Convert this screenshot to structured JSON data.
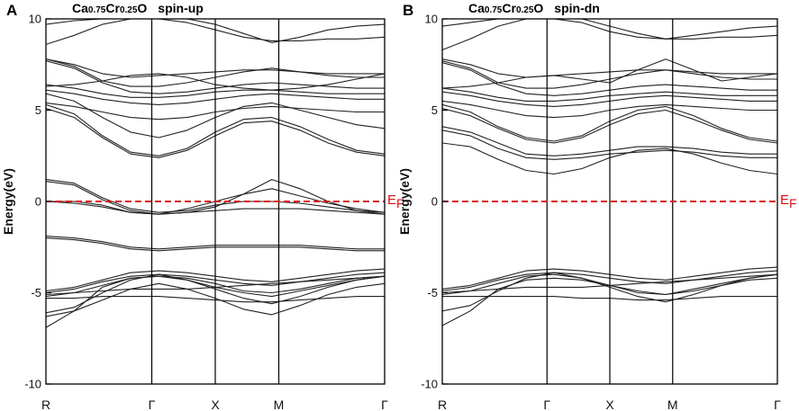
{
  "figure": {
    "colors": {
      "band": "#222222",
      "axis": "#000000",
      "fermi": "#dd1111"
    }
  },
  "chart_data": [
    {
      "type": "line",
      "panel_label": "A",
      "title_parts": [
        "Ca",
        "0.75",
        "Cr",
        "0.25",
        "O"
      ],
      "subtitle": "spin-up",
      "ylabel": "Energy(eV)",
      "xlabel": "",
      "ylim": [
        -10,
        10
      ],
      "yticks": [
        10,
        5,
        0,
        -5,
        -10
      ],
      "k_points": [
        "R",
        "Γ",
        "X",
        "M",
        "Γ"
      ],
      "k_positions": [
        0,
        1,
        1.6,
        2.2,
        3.2
      ],
      "fermi_label": "E",
      "fermi_sub": "F",
      "fermi_level": 0,
      "bands": [
        [
          -6.9,
          -6.0,
          -4.7,
          -4.2,
          -4.1,
          -4.2,
          -4.5,
          -4.9,
          -5.0,
          -4.8,
          -4.5,
          -4.2,
          -4.1
        ],
        [
          -6.1,
          -5.8,
          -5.0,
          -4.3,
          -4.0,
          -4.3,
          -4.8,
          -5.3,
          -5.6,
          -5.2,
          -4.7,
          -4.3,
          -4.1
        ],
        [
          -5.2,
          -5.0,
          -4.6,
          -4.2,
          -4.1,
          -4.3,
          -4.7,
          -5.0,
          -5.2,
          -4.9,
          -4.6,
          -4.3,
          -4.1
        ],
        [
          -5.0,
          -4.8,
          -4.4,
          -4.1,
          -4.0,
          -4.1,
          -4.3,
          -4.5,
          -4.6,
          -4.4,
          -4.2,
          -4.0,
          -3.9
        ],
        [
          -4.9,
          -4.7,
          -4.3,
          -3.9,
          -3.8,
          -3.9,
          -4.1,
          -4.3,
          -4.4,
          -4.2,
          -4.0,
          -3.8,
          -3.7
        ],
        [
          -5.3,
          -5.3,
          -5.2,
          -5.2,
          -5.2,
          -5.3,
          -5.4,
          -5.5,
          -5.5,
          -5.4,
          -5.3,
          -5.2,
          -5.2
        ],
        [
          -6.3,
          -6.0,
          -5.4,
          -4.8,
          -4.5,
          -4.8,
          -5.3,
          -5.9,
          -6.2,
          -5.7,
          -5.1,
          -4.7,
          -4.5
        ],
        [
          -5.1,
          -5.0,
          -4.9,
          -4.8,
          -4.8,
          -4.8,
          -4.7,
          -4.6,
          -4.5,
          -4.4,
          -4.3,
          -4.2,
          -4.1
        ],
        [
          -1.9,
          -2.0,
          -2.2,
          -2.5,
          -2.6,
          -2.5,
          -2.4,
          -2.4,
          -2.4,
          -2.4,
          -2.5,
          -2.6,
          -2.6
        ],
        [
          -2.0,
          -2.1,
          -2.3,
          -2.6,
          -2.7,
          -2.6,
          -2.5,
          -2.5,
          -2.5,
          -2.5,
          -2.6,
          -2.7,
          -2.7
        ],
        [
          1.2,
          1.0,
          0.2,
          -0.4,
          -0.6,
          -0.5,
          -0.2,
          0.0,
          0.0,
          -0.1,
          -0.3,
          -0.5,
          -0.6
        ],
        [
          1.1,
          0.9,
          0.1,
          -0.5,
          -0.7,
          -0.4,
          0.0,
          0.4,
          0.7,
          0.3,
          -0.1,
          -0.4,
          -0.6
        ],
        [
          0.0,
          0.0,
          -0.2,
          -0.6,
          -0.7,
          -0.6,
          -0.3,
          0.4,
          1.2,
          0.7,
          0.0,
          -0.5,
          -0.7
        ],
        [
          0.0,
          -0.1,
          -0.3,
          -0.6,
          -0.7,
          -0.6,
          -0.5,
          -0.4,
          -0.4,
          -0.4,
          -0.5,
          -0.6,
          -0.7
        ],
        [
          5.3,
          4.8,
          3.6,
          2.7,
          2.5,
          2.9,
          3.8,
          4.5,
          4.6,
          4.1,
          3.4,
          2.8,
          2.6
        ],
        [
          5.1,
          4.6,
          3.5,
          2.6,
          2.4,
          2.8,
          3.6,
          4.3,
          4.4,
          3.9,
          3.2,
          2.7,
          2.5
        ],
        [
          5.9,
          5.5,
          4.6,
          3.8,
          3.5,
          3.9,
          4.6,
          5.2,
          5.4,
          5.0,
          4.6,
          4.2,
          4.0
        ],
        [
          5.4,
          5.2,
          4.9,
          4.6,
          4.5,
          4.6,
          4.9,
          5.1,
          5.2,
          5.1,
          5.0,
          4.9,
          4.9
        ],
        [
          6.1,
          5.9,
          5.6,
          5.4,
          5.3,
          5.4,
          5.6,
          5.8,
          5.9,
          5.8,
          5.7,
          5.6,
          5.6
        ],
        [
          6.4,
          6.2,
          5.9,
          5.7,
          5.7,
          5.8,
          6.0,
          6.1,
          6.1,
          6.0,
          5.9,
          5.9,
          5.9
        ],
        [
          7.7,
          7.3,
          6.5,
          6.0,
          5.9,
          6.0,
          6.2,
          6.4,
          6.5,
          6.4,
          6.3,
          6.2,
          6.2
        ],
        [
          7.8,
          7.4,
          6.6,
          6.3,
          6.3,
          6.5,
          6.8,
          7.1,
          7.3,
          7.1,
          6.9,
          6.8,
          6.8
        ],
        [
          6.3,
          6.4,
          6.6,
          6.9,
          7.0,
          6.8,
          6.4,
          6.2,
          6.1,
          6.2,
          6.4,
          6.7,
          7.0
        ],
        [
          7.8,
          7.5,
          7.0,
          6.8,
          6.9,
          7.0,
          7.1,
          7.2,
          7.2,
          7.1,
          7.0,
          7.0,
          7.0
        ],
        [
          8.6,
          9.1,
          9.7,
          10.0,
          10.0,
          10.0,
          9.7,
          9.2,
          8.7,
          9.0,
          9.4,
          9.6,
          9.7
        ],
        [
          9.7,
          9.9,
          10.0,
          10.0,
          10.0,
          9.8,
          9.4,
          9.0,
          8.8,
          8.8,
          8.9,
          8.9,
          9.0
        ]
      ]
    },
    {
      "type": "line",
      "panel_label": "B",
      "title_parts": [
        "Ca",
        "0.75",
        "Cr",
        "0.25",
        "O"
      ],
      "subtitle": "spin-dn",
      "ylabel": "Energy(eV)",
      "xlabel": "",
      "ylim": [
        -10,
        10
      ],
      "yticks": [
        10,
        5,
        0,
        -5,
        -10
      ],
      "k_points": [
        "R",
        "Γ",
        "X",
        "M",
        "Γ"
      ],
      "k_positions": [
        0,
        1,
        1.6,
        2.2,
        3.2
      ],
      "fermi_label": "E",
      "fermi_sub": "F",
      "fermi_level": 0,
      "bands": [
        [
          -6.8,
          -6.0,
          -4.8,
          -4.3,
          -4.2,
          -4.3,
          -4.6,
          -5.0,
          -5.1,
          -4.9,
          -4.6,
          -4.3,
          -4.2
        ],
        [
          -6.0,
          -5.7,
          -4.9,
          -4.2,
          -3.9,
          -4.2,
          -4.7,
          -5.2,
          -5.5,
          -5.1,
          -4.6,
          -4.2,
          -4.0
        ],
        [
          -5.1,
          -4.9,
          -4.5,
          -4.1,
          -4.0,
          -4.2,
          -4.6,
          -4.9,
          -5.1,
          -4.8,
          -4.5,
          -4.2,
          -4.0
        ],
        [
          -4.9,
          -4.7,
          -4.3,
          -4.0,
          -3.9,
          -4.0,
          -4.2,
          -4.4,
          -4.5,
          -4.3,
          -4.1,
          -3.9,
          -3.8
        ],
        [
          -4.8,
          -4.6,
          -4.2,
          -3.8,
          -3.7,
          -3.8,
          -4.0,
          -4.2,
          -4.3,
          -4.1,
          -3.9,
          -3.7,
          -3.6
        ],
        [
          -5.2,
          -5.2,
          -5.2,
          -5.2,
          -5.2,
          -5.3,
          -5.3,
          -5.4,
          -5.4,
          -5.3,
          -5.2,
          -5.2,
          -5.2
        ],
        [
          -5.0,
          -4.9,
          -4.8,
          -4.7,
          -4.7,
          -4.7,
          -4.6,
          -4.5,
          -4.4,
          -4.3,
          -4.2,
          -4.1,
          -4.0
        ],
        [
          3.2,
          3.0,
          2.3,
          1.7,
          1.5,
          1.8,
          2.4,
          2.8,
          2.9,
          2.6,
          2.1,
          1.7,
          1.5
        ],
        [
          3.9,
          3.6,
          2.9,
          2.4,
          2.3,
          2.4,
          2.6,
          2.7,
          2.8,
          2.7,
          2.5,
          2.4,
          2.4
        ],
        [
          4.1,
          3.8,
          3.2,
          2.6,
          2.5,
          2.6,
          2.8,
          3.0,
          3.0,
          2.9,
          2.7,
          2.6,
          2.6
        ],
        [
          5.3,
          4.9,
          4.1,
          3.5,
          3.3,
          3.6,
          4.4,
          5.0,
          5.2,
          4.7,
          4.0,
          3.5,
          3.3
        ],
        [
          5.1,
          4.7,
          4.0,
          3.4,
          3.2,
          3.5,
          4.2,
          4.8,
          5.0,
          4.5,
          3.9,
          3.4,
          3.2
        ],
        [
          5.5,
          5.3,
          5.0,
          4.7,
          4.6,
          4.7,
          5.0,
          5.2,
          5.3,
          5.2,
          5.1,
          5.0,
          5.0
        ],
        [
          6.0,
          5.8,
          5.5,
          5.3,
          5.2,
          5.3,
          5.5,
          5.7,
          5.8,
          5.7,
          5.6,
          5.5,
          5.5
        ],
        [
          6.2,
          6.0,
          5.7,
          5.5,
          5.5,
          5.6,
          5.8,
          5.9,
          6.0,
          5.9,
          5.8,
          5.8,
          5.8
        ],
        [
          7.6,
          7.2,
          6.4,
          5.9,
          5.8,
          5.9,
          6.1,
          6.3,
          6.4,
          6.3,
          6.2,
          6.1,
          6.1
        ],
        [
          7.7,
          7.3,
          6.5,
          6.2,
          6.2,
          6.4,
          6.7,
          7.0,
          7.2,
          7.0,
          6.8,
          6.7,
          6.7
        ],
        [
          6.2,
          6.3,
          6.5,
          6.8,
          6.9,
          6.7,
          6.5,
          7.2,
          7.8,
          7.2,
          6.6,
          6.8,
          7.0
        ],
        [
          7.8,
          7.5,
          7.0,
          6.8,
          6.9,
          7.0,
          7.1,
          7.2,
          7.2,
          7.1,
          7.0,
          7.0,
          7.0
        ],
        [
          8.3,
          8.9,
          9.6,
          10.0,
          10.0,
          10.0,
          9.6,
          9.2,
          8.9,
          9.1,
          9.3,
          9.5,
          9.6
        ],
        [
          9.6,
          9.8,
          10.0,
          10.0,
          10.0,
          9.8,
          9.3,
          9.0,
          8.9,
          8.9,
          9.0,
          9.0,
          9.1
        ]
      ]
    }
  ]
}
